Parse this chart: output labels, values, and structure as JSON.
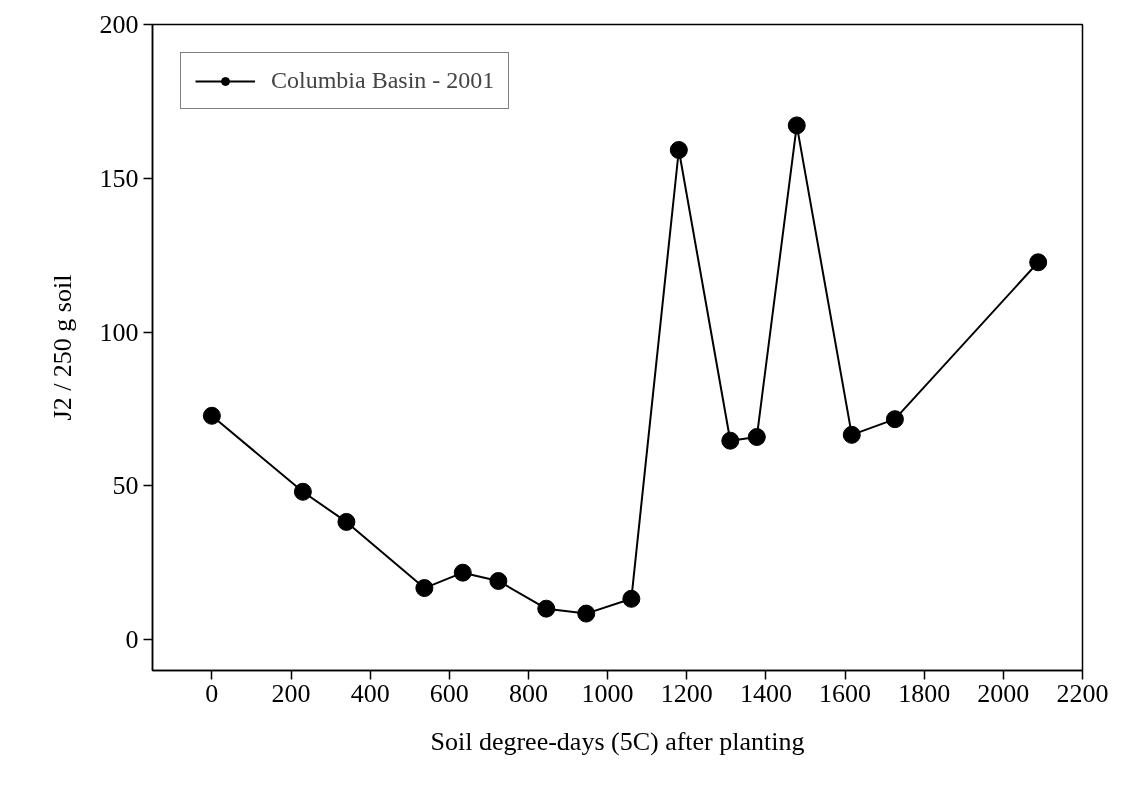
{
  "chart_data": {
    "type": "line",
    "xlabel": "Soil degree-days (5C) after planting",
    "ylabel": "J2 / 250 g soil",
    "x": [
      0,
      230,
      340,
      537,
      634,
      724,
      845,
      946,
      1060,
      1180,
      1310,
      1377,
      1478,
      1617,
      1726,
      2088
    ],
    "series": [
      {
        "name": "Columbia Basin - 2001",
        "color": "#000000",
        "values": [
          72.8,
          48.1,
          38.3,
          16.8,
          21.8,
          19.1,
          10.1,
          8.5,
          13.3,
          159.2,
          64.7,
          65.9,
          167.2,
          66.6,
          71.7,
          122.7
        ]
      }
    ],
    "xlim": [
      -150,
      2200
    ],
    "ylim": [
      -10,
      200
    ],
    "xticks": [
      0,
      200,
      400,
      600,
      800,
      1000,
      1200,
      1400,
      1600,
      1800,
      2000,
      2200
    ],
    "yticks": [
      0,
      50,
      100,
      150,
      200
    ],
    "grid": false,
    "legend": "top left",
    "marker": "circle",
    "line_style": "solid"
  }
}
